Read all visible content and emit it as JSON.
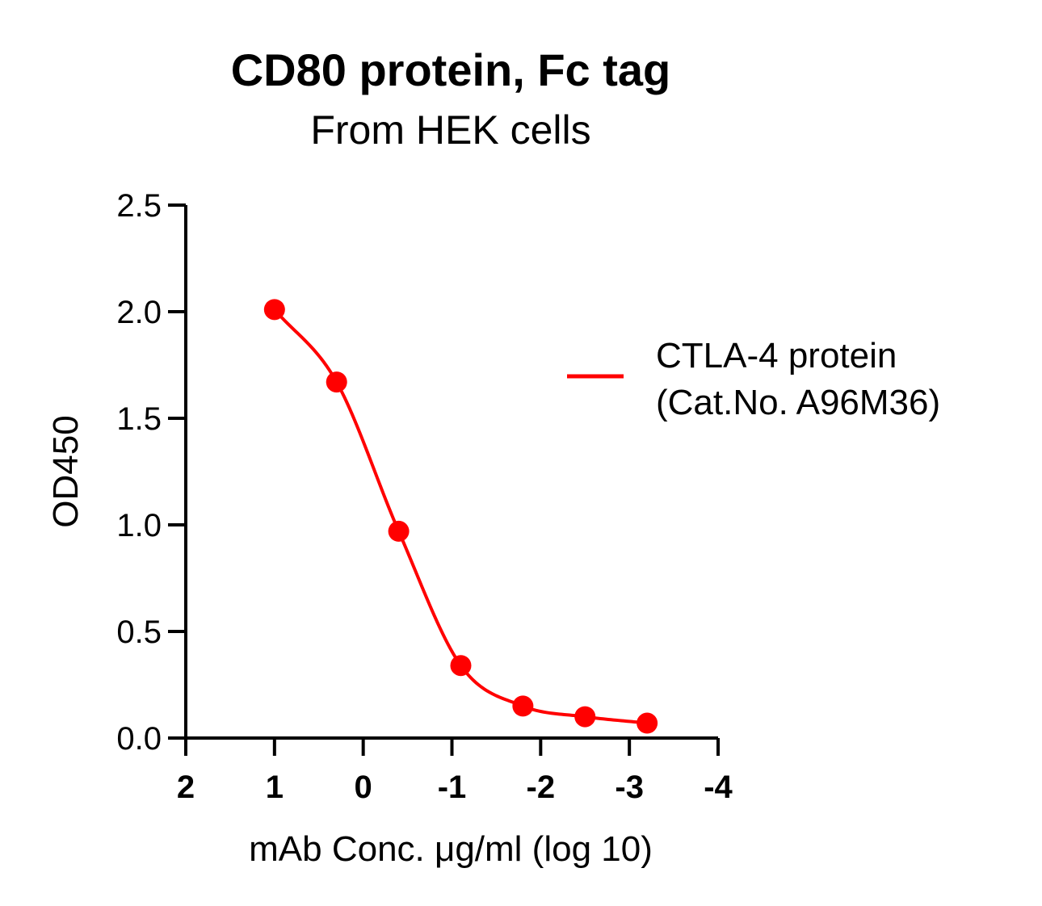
{
  "chart_data": {
    "type": "line",
    "title": "CD80 protein, Fc tag",
    "subtitle": "From HEK cells",
    "xlabel": "mAb Conc. μg/ml (log 10)",
    "ylabel": "OD450",
    "xlim": [
      2,
      -4
    ],
    "ylim": [
      0,
      2.5
    ],
    "x_ticks": [
      2,
      1,
      0,
      -1,
      -2,
      -3,
      -4
    ],
    "x_tick_labels": [
      "2",
      "1",
      "0",
      "-1",
      "-2",
      "-3",
      "-4"
    ],
    "y_ticks": [
      0,
      0.5,
      1.0,
      1.5,
      2.0,
      2.5
    ],
    "y_tick_labels": [
      "0.0",
      "0.5",
      "1.0",
      "1.5",
      "2.0",
      "2.5"
    ],
    "grid": false,
    "legend_position": "right",
    "series": [
      {
        "legend_lines": [
          "CTLA-4 protein",
          "(Cat.No. A96M36)"
        ],
        "color": "#ff0000",
        "x": [
          1.0,
          0.3,
          -0.4,
          -1.1,
          -1.8,
          -2.5,
          -3.2
        ],
        "y": [
          2.01,
          1.67,
          0.97,
          0.34,
          0.15,
          0.1,
          0.07
        ]
      }
    ]
  }
}
